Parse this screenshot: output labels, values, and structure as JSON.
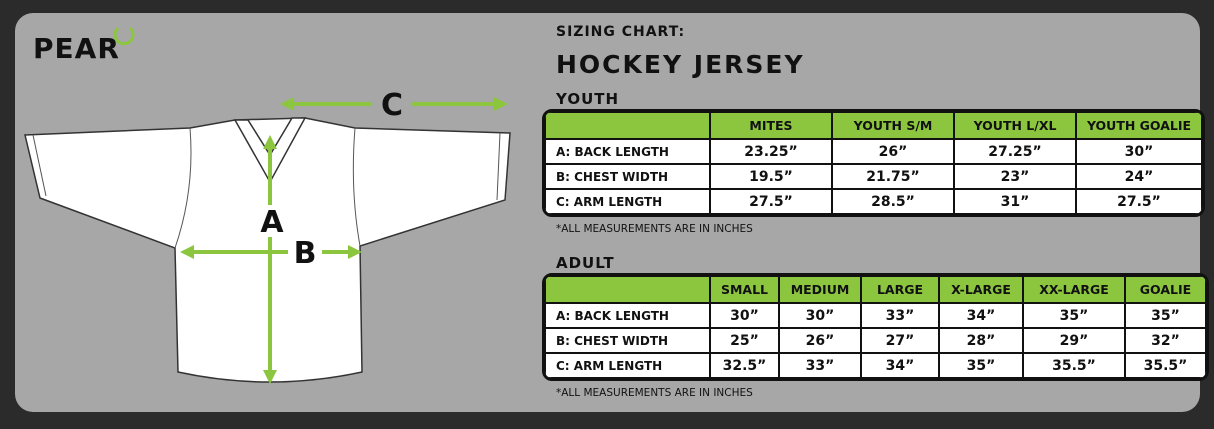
{
  "logo": "PEAR",
  "labels": {
    "a": "A",
    "b": "B",
    "c": "C"
  },
  "header": {
    "kicker": "SIZING CHART:",
    "title": "HOCKEY JERSEY"
  },
  "tables": [
    {
      "title": "YOUTH",
      "columns": [
        "MITES",
        "YOUTH S/M",
        "YOUTH L/XL",
        "YOUTH GOALIE"
      ],
      "rows": [
        {
          "label": "A: BACK LENGTH",
          "cells": [
            "23.25”",
            "26”",
            "27.25”",
            "30”"
          ]
        },
        {
          "label": "B: CHEST WIDTH",
          "cells": [
            "19.5”",
            "21.75”",
            "23”",
            "24”"
          ]
        },
        {
          "label": "C: ARM LENGTH",
          "cells": [
            "27.5”",
            "28.5”",
            "31”",
            "27.5”"
          ]
        }
      ],
      "note": "*ALL MEASUREMENTS ARE IN INCHES"
    },
    {
      "title": "ADULT",
      "columns": [
        "SMALL",
        "MEDIUM",
        "LARGE",
        "X-LARGE",
        "XX-LARGE",
        "GOALIE"
      ],
      "rows": [
        {
          "label": "A: BACK LENGTH",
          "cells": [
            "30”",
            "30”",
            "33”",
            "34”",
            "35”",
            "35”"
          ]
        },
        {
          "label": "B: CHEST WIDTH",
          "cells": [
            "25”",
            "26”",
            "27”",
            "28”",
            "29”",
            "32”"
          ]
        },
        {
          "label": "C: ARM LENGTH",
          "cells": [
            "32.5”",
            "33”",
            "34”",
            "35”",
            "35.5”",
            "35.5”"
          ]
        }
      ],
      "note": "*ALL MEASUREMENTS ARE IN INCHES"
    }
  ]
}
